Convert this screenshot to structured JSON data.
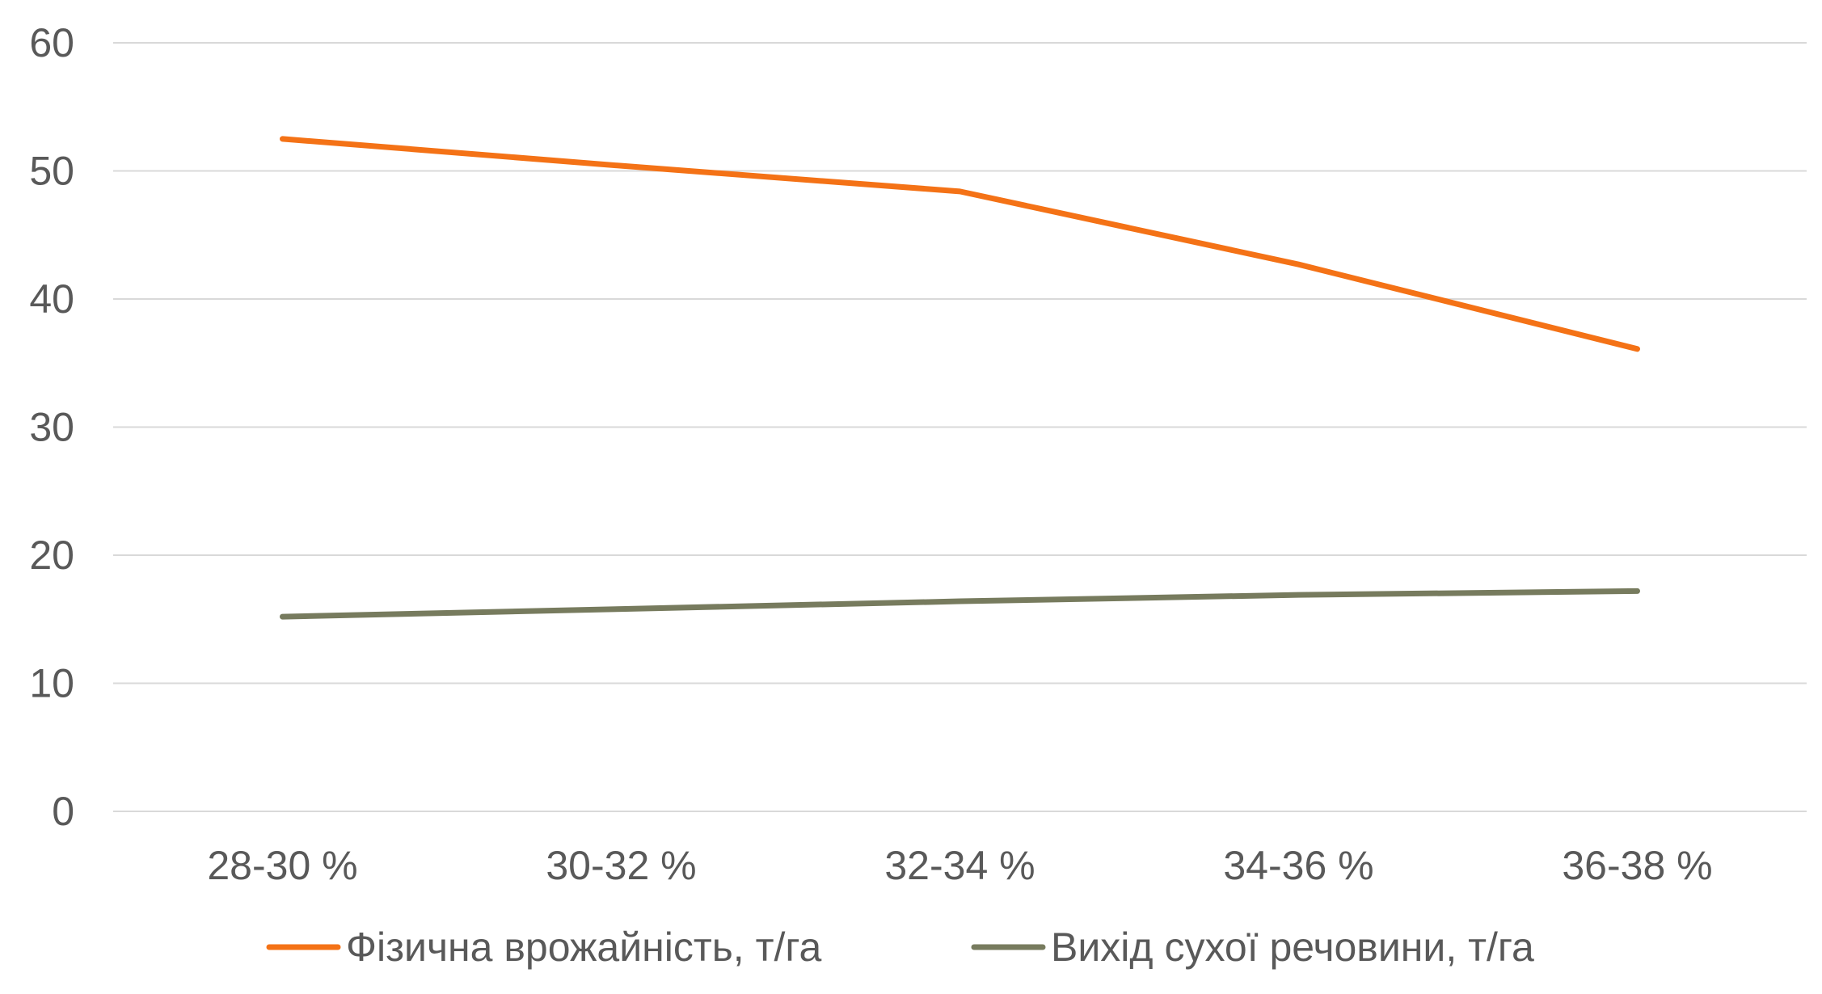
{
  "chart_data": {
    "type": "line",
    "title": "",
    "xlabel": "",
    "ylabel": "",
    "categories": [
      "28-30 %",
      "30-32 %",
      "32-34 %",
      "34-36 %",
      "36-38 %"
    ],
    "ylim": [
      0,
      60
    ],
    "yticks": [
      "0",
      "10",
      "20",
      "30",
      "40",
      "50",
      "60"
    ],
    "grid": true,
    "legend_position": "bottom",
    "series": [
      {
        "name": "Фізична врожайність, т/га",
        "color": "#f47216",
        "values": [
          52.5,
          50.4,
          48.4,
          42.7,
          36.1
        ]
      },
      {
        "name": "Вихід сухої речовини, т/га",
        "color": "#777b5e",
        "values": [
          15.2,
          15.8,
          16.4,
          16.9,
          17.2
        ]
      }
    ]
  }
}
